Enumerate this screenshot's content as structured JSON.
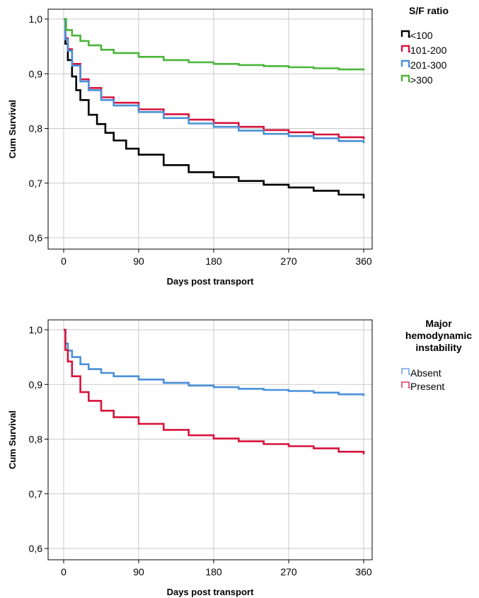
{
  "chart_data": [
    {
      "type": "line",
      "xlabel": "Days post transport",
      "ylabel": "Cum Survival",
      "xticks": [
        "0",
        "90",
        "180",
        "270",
        "360"
      ],
      "yticks": [
        "0,6",
        "0,7",
        "0,8",
        "0,9",
        "1,0"
      ],
      "xlim": [
        0,
        360
      ],
      "ylim": [
        0.6,
        1.0
      ],
      "grid": true,
      "legend": {
        "title": "S/F ratio",
        "placement": "right"
      },
      "series": [
        {
          "name": "<100",
          "color": "#000000",
          "x": [
            0,
            2,
            5,
            10,
            15,
            20,
            30,
            40,
            50,
            60,
            75,
            90,
            120,
            150,
            180,
            210,
            240,
            270,
            300,
            330,
            360
          ],
          "y": [
            1.0,
            0.955,
            0.925,
            0.895,
            0.87,
            0.852,
            0.825,
            0.808,
            0.792,
            0.778,
            0.763,
            0.752,
            0.733,
            0.72,
            0.711,
            0.704,
            0.697,
            0.692,
            0.686,
            0.679,
            0.672
          ]
        },
        {
          "name": "101-200",
          "color": "#d6143c",
          "x": [
            0,
            2,
            5,
            10,
            20,
            30,
            45,
            60,
            90,
            120,
            150,
            180,
            210,
            240,
            270,
            300,
            330,
            360
          ],
          "y": [
            1.0,
            0.965,
            0.945,
            0.918,
            0.89,
            0.874,
            0.857,
            0.847,
            0.835,
            0.826,
            0.816,
            0.81,
            0.803,
            0.797,
            0.793,
            0.789,
            0.784,
            0.78
          ]
        },
        {
          "name": "201-300",
          "color": "#4a90d9",
          "x": [
            0,
            2,
            5,
            10,
            20,
            30,
            45,
            60,
            90,
            120,
            150,
            180,
            210,
            240,
            270,
            300,
            330,
            360
          ],
          "y": [
            1.0,
            0.963,
            0.942,
            0.915,
            0.886,
            0.87,
            0.852,
            0.842,
            0.83,
            0.819,
            0.809,
            0.803,
            0.796,
            0.79,
            0.786,
            0.782,
            0.777,
            0.773
          ]
        },
        {
          "name": ">300",
          "color": "#4bb53a",
          "x": [
            0,
            3,
            10,
            20,
            30,
            45,
            60,
            90,
            120,
            150,
            180,
            210,
            240,
            270,
            300,
            330,
            360
          ],
          "y": [
            1.0,
            0.98,
            0.97,
            0.96,
            0.952,
            0.944,
            0.938,
            0.931,
            0.925,
            0.921,
            0.918,
            0.916,
            0.914,
            0.912,
            0.91,
            0.908,
            0.906
          ]
        }
      ]
    },
    {
      "type": "line",
      "xlabel": "Days post transport",
      "ylabel": "Cum Survival",
      "xticks": [
        "0",
        "90",
        "180",
        "270",
        "360"
      ],
      "yticks": [
        "0,6",
        "0,7",
        "0,8",
        "0,9",
        "1,0"
      ],
      "xlim": [
        0,
        360
      ],
      "ylim": [
        0.6,
        1.0
      ],
      "grid": true,
      "legend": {
        "title": "Major hemodynamic instability",
        "placement": "right"
      },
      "series": [
        {
          "name": "Absent",
          "color": "#4a90d9",
          "x": [
            0,
            2,
            5,
            10,
            20,
            30,
            45,
            60,
            90,
            120,
            150,
            180,
            210,
            240,
            270,
            300,
            330,
            360
          ],
          "y": [
            1.0,
            0.975,
            0.962,
            0.95,
            0.937,
            0.928,
            0.921,
            0.915,
            0.909,
            0.903,
            0.898,
            0.895,
            0.892,
            0.89,
            0.888,
            0.885,
            0.882,
            0.879
          ]
        },
        {
          "name": "Present",
          "color": "#d6143c",
          "x": [
            0,
            2,
            5,
            10,
            20,
            30,
            45,
            60,
            90,
            120,
            150,
            180,
            210,
            240,
            270,
            300,
            330,
            360
          ],
          "y": [
            1.0,
            0.963,
            0.942,
            0.915,
            0.886,
            0.87,
            0.852,
            0.84,
            0.828,
            0.817,
            0.807,
            0.801,
            0.796,
            0.791,
            0.787,
            0.783,
            0.777,
            0.772
          ]
        }
      ]
    }
  ]
}
